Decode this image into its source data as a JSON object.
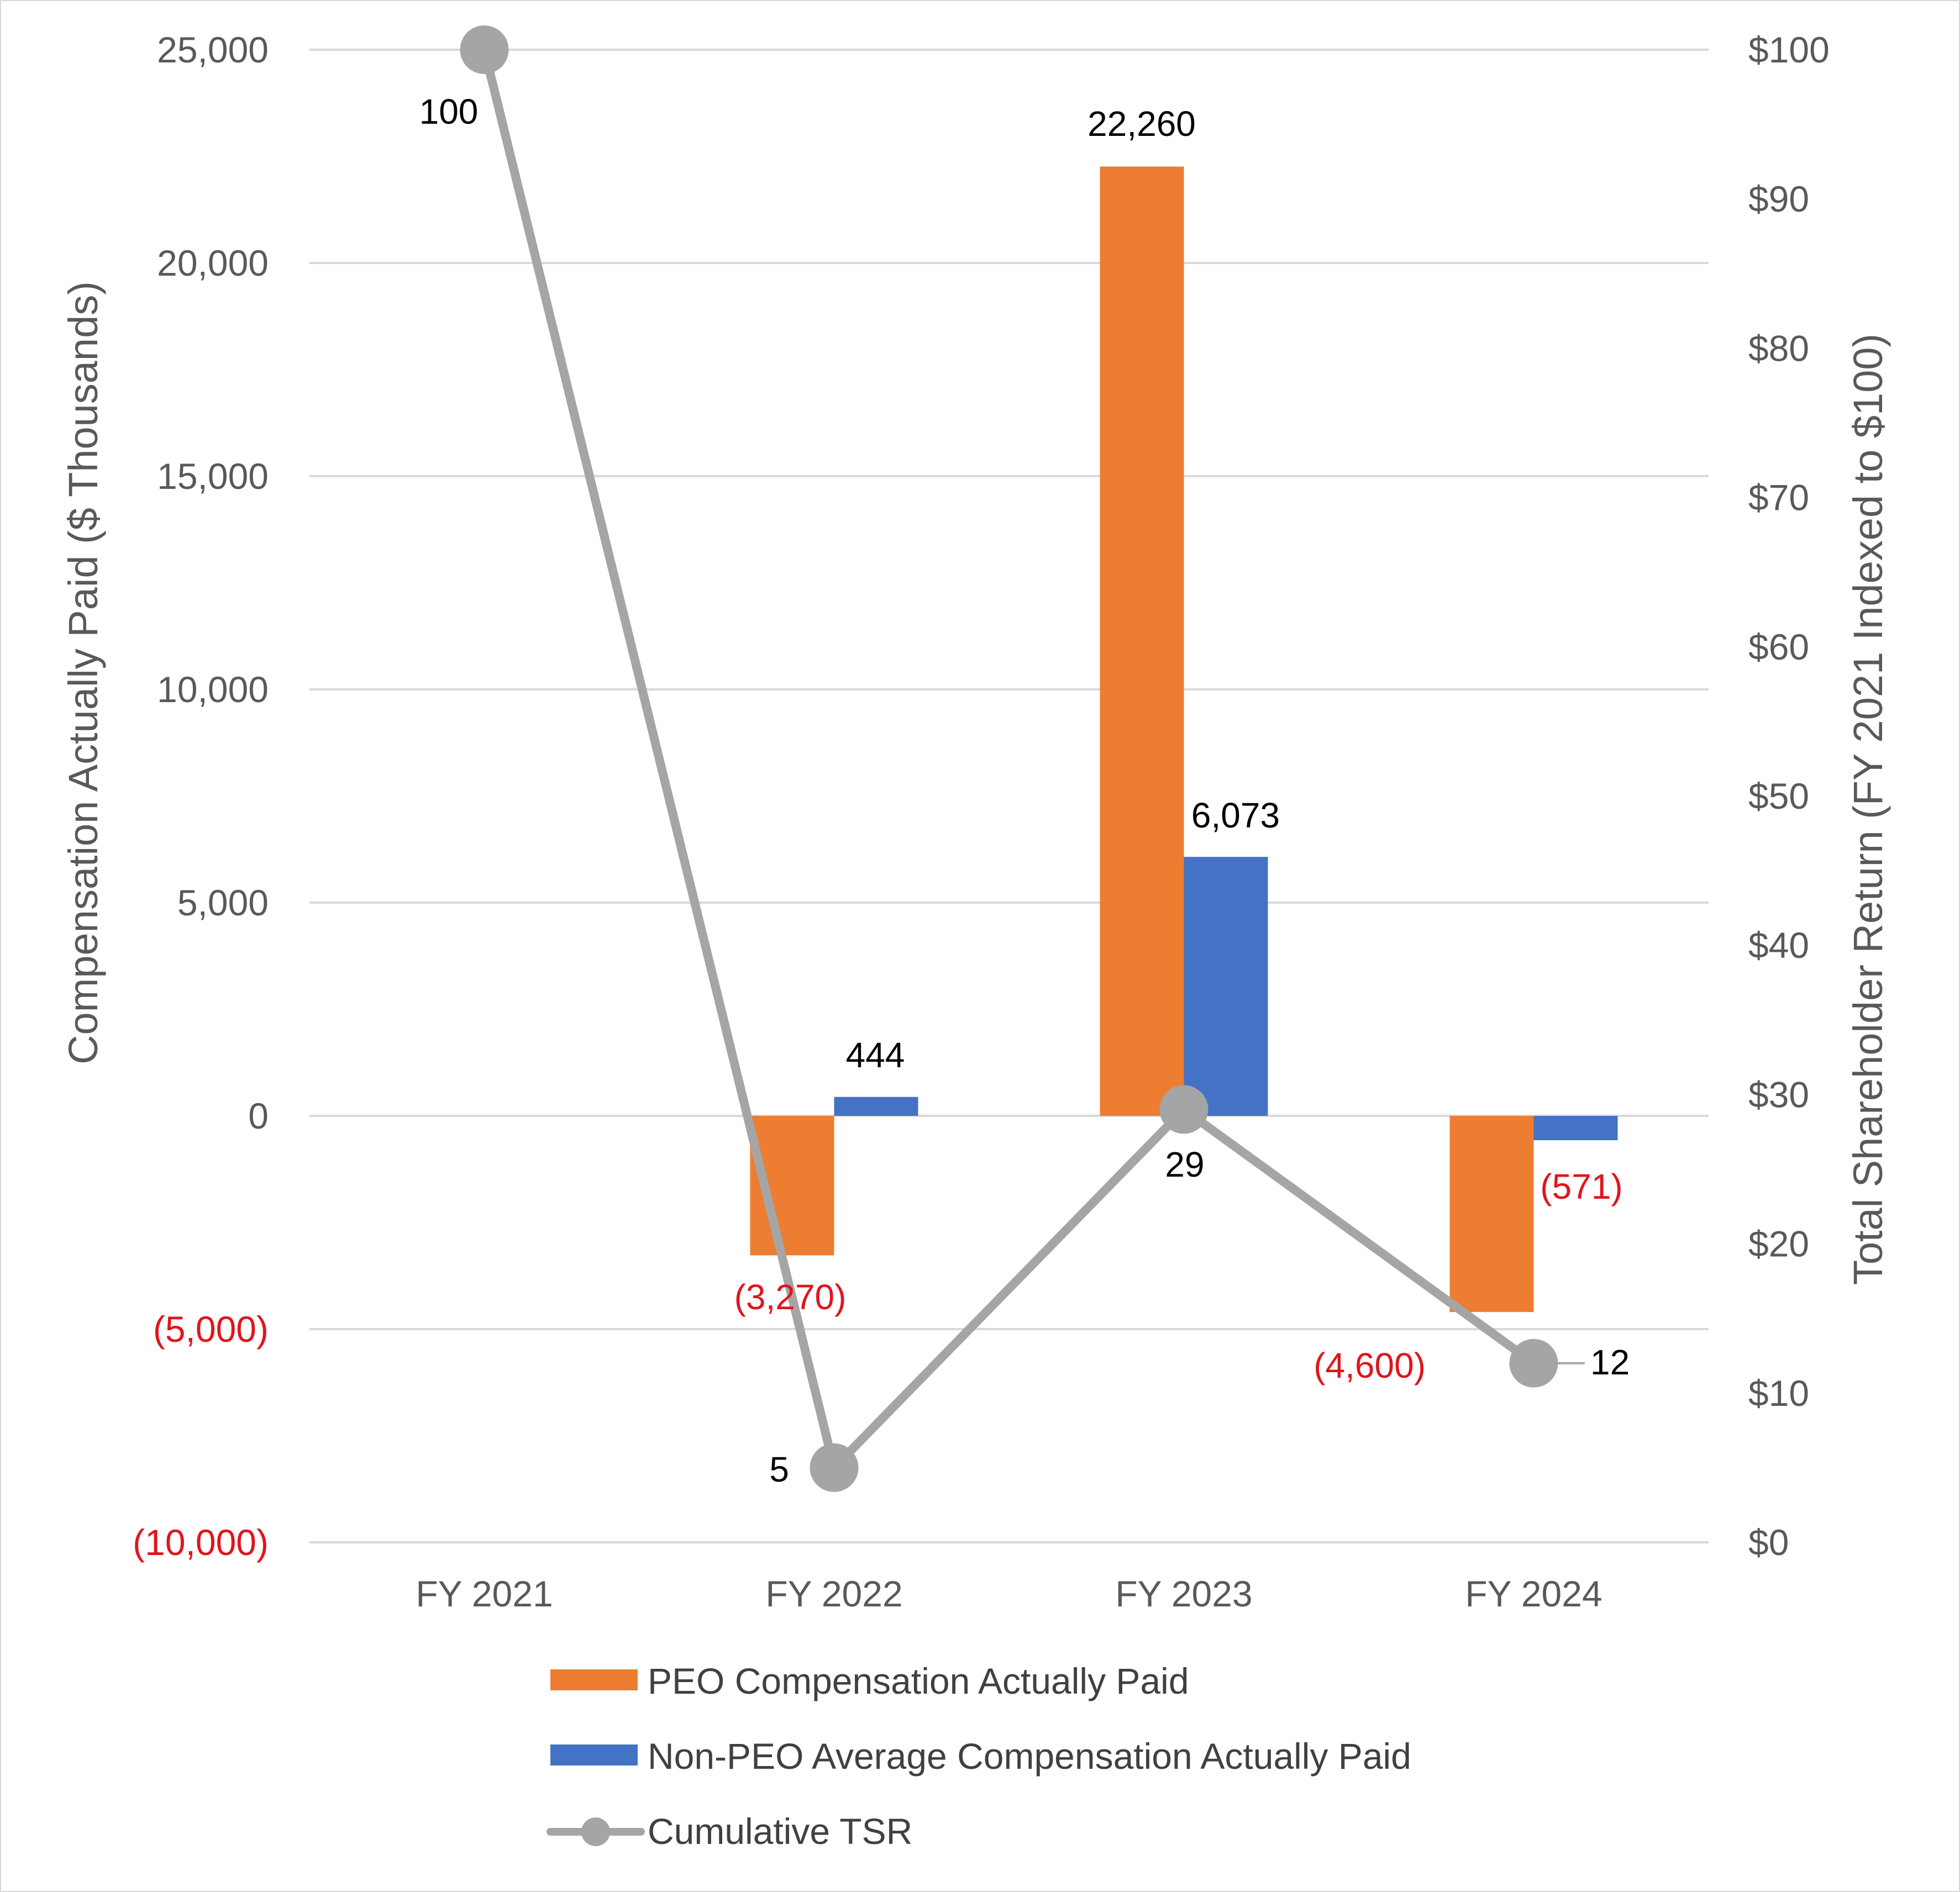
{
  "chart_data": {
    "type": "bar",
    "categories": [
      "FY 2021",
      "FY 2022",
      "FY 2023",
      "FY 2024"
    ],
    "series": [
      {
        "name": "PEO Compensation Actually Paid",
        "kind": "bar",
        "axis": "left",
        "color": "#ed7d31",
        "values": [
          null,
          -3270,
          22260,
          -4600
        ],
        "labels": [
          "",
          "(3,270)",
          "22,260",
          "(4,600)"
        ]
      },
      {
        "name": "Non-PEO Average Compensation Actually Paid",
        "kind": "bar",
        "axis": "left",
        "color": "#4472c4",
        "values": [
          null,
          444,
          6073,
          -571
        ],
        "labels": [
          "",
          "444",
          "6,073",
          "(571)"
        ]
      },
      {
        "name": "Cumulative TSR",
        "kind": "line",
        "axis": "right",
        "color": "#a5a5a5",
        "values": [
          100,
          5,
          29,
          12
        ],
        "labels": [
          "100",
          "5",
          "29",
          "12"
        ]
      }
    ],
    "y_left": {
      "title": "Compensation Actually Paid ($ Thousands)",
      "ylim": [
        -10000,
        25000
      ],
      "ticks": [
        25000,
        20000,
        15000,
        10000,
        5000,
        0,
        -5000,
        -10000
      ],
      "tick_labels": [
        "25,000",
        "20,000",
        "15,000",
        "10,000",
        "5,000",
        "0",
        "(5,000)",
        "(10,000)"
      ]
    },
    "y_right": {
      "title": "Total Shareholder Return (FY 2021 Indexed to $100)",
      "ylim": [
        0,
        100
      ],
      "ticks": [
        100,
        90,
        80,
        70,
        60,
        50,
        40,
        30,
        20,
        10,
        0
      ],
      "tick_labels": [
        "$100",
        "$90",
        "$80",
        "$70",
        "$60",
        "$50",
        "$40",
        "$30",
        "$20",
        "$10",
        "$0"
      ]
    },
    "grid": true,
    "legend_position": "bottom",
    "negative_label_color": "#e0151b"
  }
}
